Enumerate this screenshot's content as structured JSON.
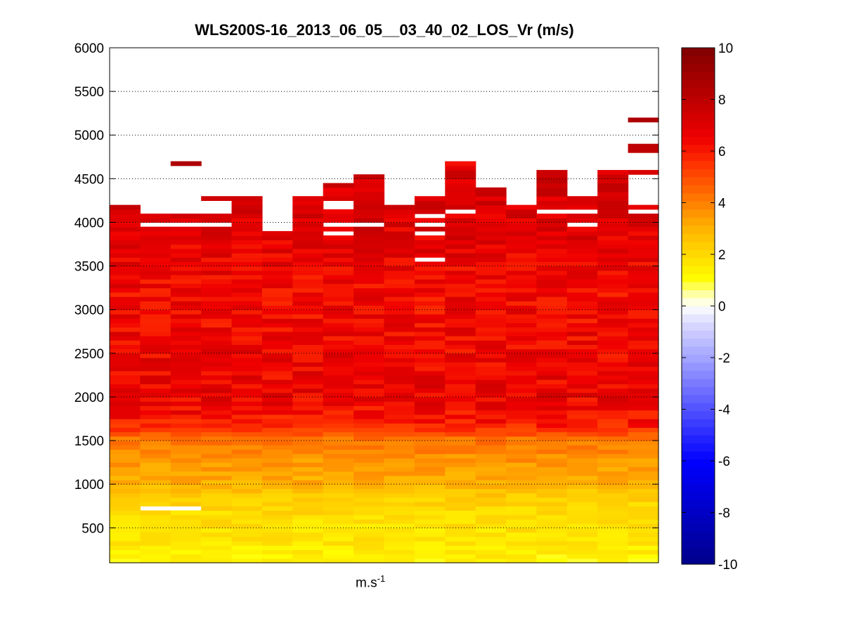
{
  "chart_data": {
    "type": "heatmap",
    "title": "WLS200S-16_2013_06_05__03_40_02_LOS_Vr (m/s)",
    "xlabel": {
      "base": "m.s",
      "exponent": "-1"
    },
    "ylabel": "",
    "columns": 18,
    "ylim": [
      100,
      6000
    ],
    "yticks": [
      500,
      1000,
      1500,
      2000,
      2500,
      3000,
      3500,
      4000,
      4500,
      5000,
      5500,
      6000
    ],
    "grid": "dotted horizontal",
    "range_bin_m": 50,
    "colorbar": {
      "clim": [
        -10,
        10
      ],
      "ticks": [
        -10,
        -8,
        -6,
        -4,
        -2,
        0,
        2,
        4,
        6,
        8,
        10
      ]
    },
    "value_profile": [
      {
        "altitude": 100,
        "value": 1.3
      },
      {
        "altitude": 300,
        "value": 1.6
      },
      {
        "altitude": 600,
        "value": 1.9
      },
      {
        "altitude": 800,
        "value": 2.2
      },
      {
        "altitude": 1000,
        "value": 3.1
      },
      {
        "altitude": 1250,
        "value": 3.6
      },
      {
        "altitude": 1500,
        "value": 4.3
      },
      {
        "altitude": 1650,
        "value": 6.0
      },
      {
        "altitude": 2000,
        "value": 6.7
      },
      {
        "altitude": 3000,
        "value": 6.4
      },
      {
        "altitude": 3500,
        "value": 6.6
      },
      {
        "altitude": 4000,
        "value": 7.1
      },
      {
        "altitude": 5200,
        "value": 7.6
      }
    ],
    "column_top_altitude": [
      4200,
      4100,
      4100,
      4100,
      4250,
      3900,
      4300,
      4400,
      4500,
      4200,
      4300,
      4700,
      4400,
      4200,
      4600,
      4300,
      4600,
      4200
    ],
    "isolated_cells": [
      {
        "column": 2,
        "altitude": 4650,
        "value": 8.5
      },
      {
        "column": 3,
        "altitude": 4250,
        "value": 7.5
      },
      {
        "column": 4,
        "altitude": 4250,
        "value": 7.5
      },
      {
        "column": 7,
        "altitude": 4400,
        "value": 7.8
      },
      {
        "column": 8,
        "altitude": 4500,
        "value": 7.8
      },
      {
        "column": 11,
        "altitude": 4650,
        "value": 6.2
      },
      {
        "column": 17,
        "altitude": 5150,
        "value": 8.5
      },
      {
        "column": 17,
        "altitude": 4850,
        "value": 8.0
      },
      {
        "column": 17,
        "altitude": 4800,
        "value": 8.0
      },
      {
        "column": 17,
        "altitude": 4550,
        "value": 7.2
      }
    ],
    "missing_cells": [
      {
        "column": 1,
        "altitude": 3950
      },
      {
        "column": 2,
        "altitude": 3950
      },
      {
        "column": 3,
        "altitude": 3950
      },
      {
        "column": 7,
        "altitude": 4200
      },
      {
        "column": 7,
        "altitude": 4150
      },
      {
        "column": 7,
        "altitude": 3950
      },
      {
        "column": 7,
        "altitude": 3850
      },
      {
        "column": 8,
        "altitude": 3950
      },
      {
        "column": 10,
        "altitude": 4050
      },
      {
        "column": 10,
        "altitude": 3950
      },
      {
        "column": 10,
        "altitude": 3850
      },
      {
        "column": 10,
        "altitude": 3550
      },
      {
        "column": 11,
        "altitude": 4100
      },
      {
        "column": 14,
        "altitude": 4100
      },
      {
        "column": 15,
        "altitude": 4100
      },
      {
        "column": 15,
        "altitude": 3950
      },
      {
        "column": 17,
        "altitude": 4100
      },
      {
        "column": 17,
        "altitude": 4500
      },
      {
        "column": 1,
        "altitude": 700
      },
      {
        "column": 2,
        "altitude": 700
      }
    ]
  }
}
